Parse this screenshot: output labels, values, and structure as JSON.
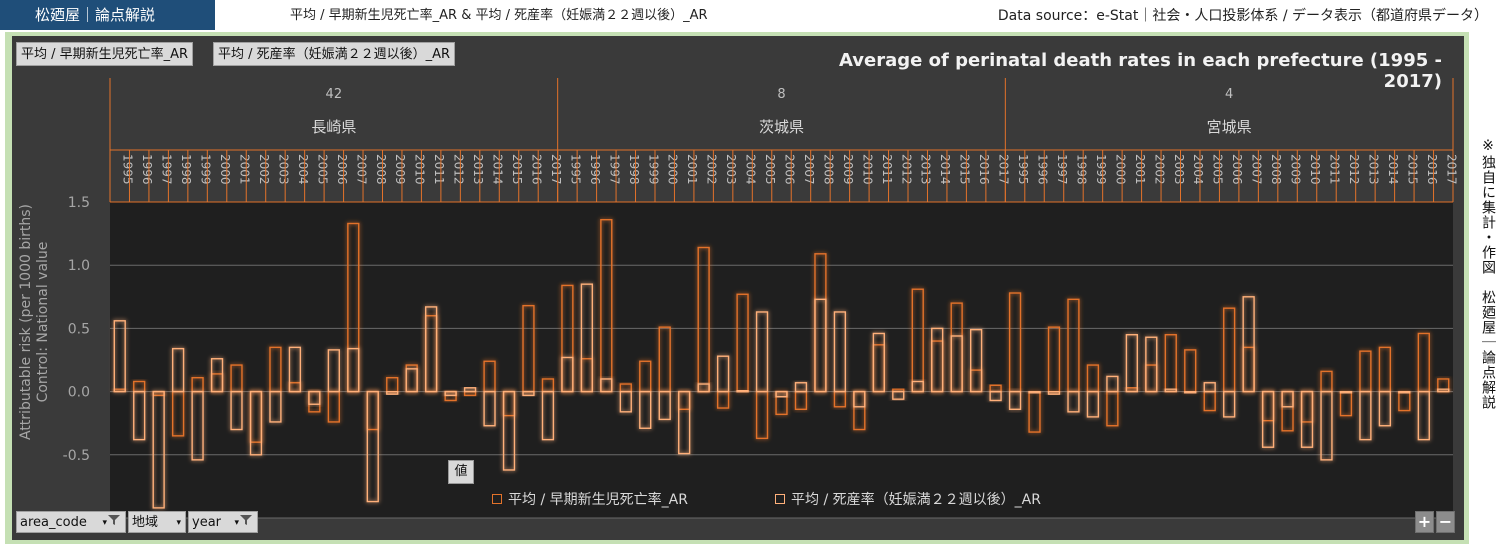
{
  "header": {
    "brand": "松廼屋｜論点解説",
    "title": "平均 / 早期新生児死亡率_AR & 平均 / 死産率（妊娠満２２週以後）_AR",
    "source": "Data source：e-Stat｜社会・人口投影体系 / データ表示（都道府県データ）"
  },
  "side_note": "※独自に集計・作図　松廼屋｜論点解説",
  "filter_buttons": [
    "平均 / 早期新生児死亡率_AR",
    "平均 / 死産率（妊娠満２２週以後）_AR"
  ],
  "value_label": "値",
  "field_buttons": [
    {
      "label": "area_code",
      "icon": "filter-icon"
    },
    {
      "label": "地域",
      "icon": "dropdown-icon"
    },
    {
      "label": "year",
      "icon": "filter-icon"
    }
  ],
  "zoom": {
    "plus": "+",
    "minus": "−"
  },
  "colors": {
    "series1": "#e3722a",
    "series2": "#ffb07a",
    "glow": "#ff8a3d",
    "plot_bg": "#1f1f1f",
    "panel_bg": "#3a3a3a",
    "frame": "#c5e0b4"
  },
  "chart_data": {
    "type": "bar",
    "title": "Average of perinatal death rates in each prefecture (1995 - 2017)",
    "ylabel": "Attributable risk (per 1000 births)\nControl: National value",
    "ylim": [
      -1.0,
      1.5
    ],
    "yticks": [
      1.5,
      1.0,
      0.5,
      0.0,
      -0.5,
      -1.0
    ],
    "ytick_labels": [
      "1.5",
      "1.0",
      "0.5",
      "0.0",
      "-0.5",
      "-1.0"
    ],
    "grid": true,
    "legend_position": "bottom",
    "groups": [
      {
        "area_code": "42",
        "name": "長崎県",
        "years": [
          "1995",
          "1996",
          "1997",
          "1998",
          "1999",
          "2000",
          "2001",
          "2002",
          "2003",
          "2004",
          "2005",
          "2006",
          "2007",
          "2008",
          "2009",
          "2010",
          "2011",
          "2012",
          "2013",
          "2014",
          "2015",
          "2016",
          "2017"
        ],
        "a": [
          0.02,
          0.08,
          -0.03,
          -0.35,
          0.11,
          0.14,
          0.21,
          -0.4,
          0.35,
          0.07,
          -0.16,
          -0.24,
          1.33,
          -0.3,
          0.11,
          0.21,
          0.6,
          -0.07,
          -0.03,
          0.24,
          -0.19,
          0.68,
          0.1
        ],
        "b": [
          0.56,
          -0.38,
          -0.92,
          0.34,
          -0.54,
          0.26,
          -0.3,
          -0.5,
          -0.24,
          0.35,
          -0.1,
          0.33,
          0.34,
          -0.87,
          -0.02,
          0.18,
          0.67,
          -0.03,
          0.03,
          -0.27,
          -0.62,
          -0.03,
          -0.38
        ]
      },
      {
        "area_code": "8",
        "name": "茨城県",
        "years": [
          "1995",
          "1996",
          "1997",
          "1998",
          "1999",
          "2000",
          "2001",
          "2002",
          "2003",
          "2004",
          "2005",
          "2006",
          "2007",
          "2008",
          "2009",
          "2010",
          "2011",
          "2012",
          "2013",
          "2014",
          "2015",
          "2016",
          "2017"
        ],
        "a": [
          0.84,
          0.26,
          1.36,
          0.06,
          0.24,
          0.51,
          -0.14,
          1.14,
          -0.13,
          0.77,
          -0.37,
          -0.18,
          -0.14,
          1.09,
          -0.12,
          -0.3,
          0.37,
          0.02,
          0.81,
          0.4,
          0.7,
          0.17,
          0.05
        ],
        "b": [
          0.27,
          0.85,
          0.1,
          -0.16,
          -0.29,
          -0.22,
          -0.49,
          0.06,
          0.28,
          0.01,
          0.63,
          -0.04,
          0.07,
          0.73,
          0.63,
          -0.12,
          0.46,
          -0.06,
          0.08,
          0.5,
          0.44,
          0.49,
          -0.07
        ]
      },
      {
        "area_code": "4",
        "name": "宮城県",
        "years": [
          "1995",
          "1996",
          "1997",
          "1998",
          "1999",
          "2000",
          "2001",
          "2002",
          "2003",
          "2004",
          "2005",
          "2006",
          "2007",
          "2008",
          "2009",
          "2010",
          "2011",
          "2012",
          "2013",
          "2014",
          "2015",
          "2016",
          "2017"
        ],
        "a": [
          0.78,
          -0.32,
          0.51,
          0.73,
          0.21,
          -0.27,
          0.03,
          0.21,
          0.45,
          0.33,
          -0.15,
          0.66,
          0.35,
          -0.23,
          -0.31,
          -0.24,
          0.16,
          -0.19,
          0.32,
          0.35,
          -0.15,
          0.46,
          0.1
        ],
        "b": [
          -0.14,
          -0.01,
          -0.02,
          -0.16,
          -0.2,
          0.12,
          0.45,
          0.43,
          0.02,
          -0.01,
          0.07,
          -0.2,
          0.75,
          -0.44,
          -0.12,
          -0.44,
          -0.54,
          -0.01,
          -0.38,
          -0.27,
          -0.01,
          -0.38,
          0.02
        ]
      }
    ],
    "series": [
      {
        "name": "平均 / 早期新生児死亡率_AR",
        "key": "a"
      },
      {
        "name": "平均 / 死産率（妊娠満２２週以後）_AR",
        "key": "b"
      }
    ]
  }
}
